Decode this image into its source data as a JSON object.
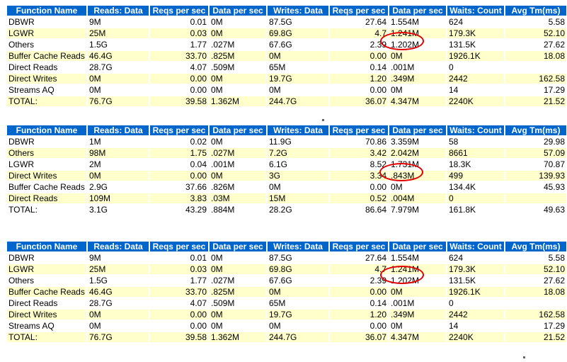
{
  "columns": [
    "Function Name",
    "Reads: Data",
    "Reqs per sec",
    "Data per sec",
    "Writes: Data",
    "Reqs per sec",
    "Data per sec",
    "Waits: Count",
    "Avg Tm(ms)"
  ],
  "columns_t2": [
    "Function Name",
    "Reads: Data",
    "Reqs per sec",
    "Data per sec",
    "Writes: Data",
    "Reqs per sec",
    "Data per sec",
    "Waits: Count",
    "Avg Tm(ms)"
  ],
  "tables": [
    {
      "rows": [
        [
          "DBWR",
          "9M",
          "0.01",
          "0M",
          "87.5G",
          "27.64",
          "1.554M",
          "624",
          "5.58"
        ],
        [
          "LGWR",
          "25M",
          "0.03",
          "0M",
          "69.8G",
          "4.7",
          "1.241M",
          "179.3K",
          "52.10"
        ],
        [
          "Others",
          "1.5G",
          "1.77",
          ".027M",
          "67.6G",
          "2.39",
          "1.202M",
          "131.5K",
          "27.62"
        ],
        [
          "Buffer Cache Reads",
          "46.4G",
          "33.70",
          ".825M",
          "0M",
          "0.00",
          "0M",
          "1926.1K",
          "18.08"
        ],
        [
          "Direct Reads",
          "28.7G",
          "4.07",
          ".509M",
          "65M",
          "0.14",
          ".001M",
          "0",
          ""
        ],
        [
          "Direct Writes",
          "0M",
          "0.00",
          "0M",
          "19.7G",
          "1.20",
          ".349M",
          "2442",
          "162.58"
        ],
        [
          "Streams AQ",
          "0M",
          "0.00",
          "0M",
          "0M",
          "0.00",
          "0M",
          "14",
          "17.29"
        ],
        [
          "TOTAL:",
          "76.7G",
          "39.58",
          "1.362M",
          "244.7G",
          "36.07",
          "4.347M",
          "2240K",
          "21.52"
        ]
      ]
    },
    {
      "rows": [
        [
          "DBWR",
          "1M",
          "0.02",
          "0M",
          "11.9G",
          "70.86",
          "3.359M",
          "58",
          "29.98"
        ],
        [
          "Others",
          "98M",
          "1.75",
          ".027M",
          "7.2G",
          "3.42",
          "2.042M",
          "8661",
          "57.09"
        ],
        [
          "LGWR",
          "2M",
          "0.04",
          ".001M",
          "6.1G",
          "8.52",
          "1.731M",
          "18.3K",
          "70.87"
        ],
        [
          "Direct Writes",
          "0M",
          "0.00",
          "0M",
          "3G",
          "3.34",
          ".843M",
          "499",
          "139.93"
        ],
        [
          "Buffer Cache Reads",
          "2.9G",
          "37.66",
          ".826M",
          "0M",
          "0.00",
          "0M",
          "134.4K",
          "45.93"
        ],
        [
          "Direct Reads",
          "109M",
          "3.83",
          ".03M",
          "15M",
          "0.52",
          ".004M",
          "0",
          ""
        ],
        [
          "TOTAL:",
          "3.1G",
          "43.29",
          ".884M",
          "28.2G",
          "86.64",
          "7.979M",
          "161.8K",
          "49.63"
        ]
      ]
    },
    {
      "rows": [
        [
          "DBWR",
          "9M",
          "0.01",
          "0M",
          "87.5G",
          "27.64",
          "1.554M",
          "624",
          "5.58"
        ],
        [
          "LGWR",
          "25M",
          "0.03",
          "0M",
          "69.8G",
          "4.7",
          "1.241M",
          "179.3K",
          "52.10"
        ],
        [
          "Others",
          "1.5G",
          "1.77",
          ".027M",
          "67.6G",
          "2.39",
          "1.202M",
          "131.5K",
          "27.62"
        ],
        [
          "Buffer Cache Reads",
          "46.4G",
          "33.70",
          ".825M",
          "0M",
          "0.00",
          "0M",
          "1926.1K",
          "18.08"
        ],
        [
          "Direct Reads",
          "28.7G",
          "4.07",
          ".509M",
          "65M",
          "0.14",
          ".001M",
          "0",
          ""
        ],
        [
          "Direct Writes",
          "0M",
          "0.00",
          "0M",
          "19.7G",
          "1.20",
          ".349M",
          "2442",
          "162.58"
        ],
        [
          "Streams AQ",
          "0M",
          "0.00",
          "0M",
          "0M",
          "0.00",
          "0M",
          "14",
          "17.29"
        ],
        [
          "TOTAL:",
          "76.7G",
          "39.58",
          "1.362M",
          "244.7G",
          "36.07",
          "4.347M",
          "2240K",
          "21.52"
        ]
      ]
    }
  ],
  "colors": {
    "header_bg": "#0066cc",
    "header_text": "#ffffff",
    "alt_row": "#ffffcc",
    "highlight_mark": "#e00000"
  }
}
